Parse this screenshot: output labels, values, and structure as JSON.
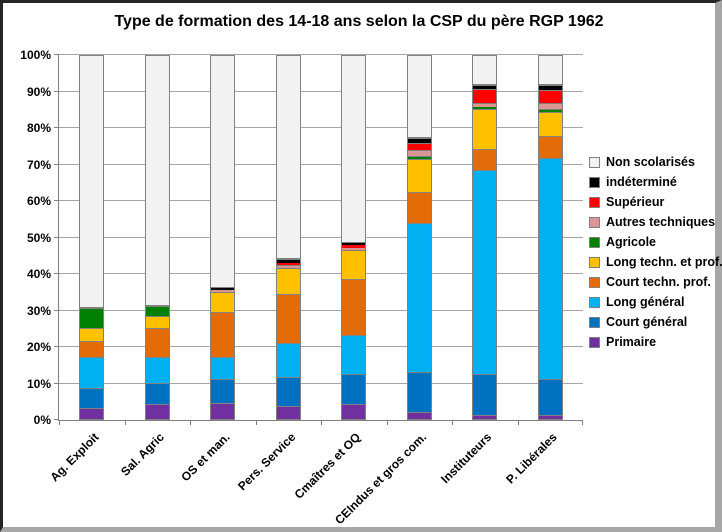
{
  "chart_data": {
    "type": "bar",
    "stacked": true,
    "percent_stacked": true,
    "title": "Type de formation des 14-18 ans selon la CSP du père RGP 1962",
    "categories": [
      "Ag. Exploit",
      "Sal. Agric",
      "OS et man.",
      "Pers. Service",
      "Cmaîtres et OQ",
      "CEIndus et gros com.",
      "Instituteurs",
      "P. Libérales"
    ],
    "series_bottom_to_top": [
      {
        "name": "Primaire",
        "color": "#7030A0",
        "values": [
          3,
          4,
          4.5,
          3.5,
          4,
          2,
          1,
          1
        ]
      },
      {
        "name": "Court général",
        "color": "#0070C0",
        "values": [
          5.5,
          6,
          6.5,
          8,
          8.5,
          11,
          11.5,
          10
        ]
      },
      {
        "name": "Long général",
        "color": "#00B0F0",
        "values": [
          8.5,
          7,
          6,
          9.5,
          10.5,
          41,
          56,
          61
        ]
      },
      {
        "name": "Court techn.  prof.",
        "color": "#E36C09",
        "values": [
          4.5,
          8,
          12.5,
          13.5,
          15.5,
          8.5,
          6,
          6
        ]
      },
      {
        "name": "Long techn. et prof.",
        "color": "#FFC000",
        "values": [
          3.5,
          3.5,
          5.5,
          7,
          8,
          9,
          11,
          6.5
        ]
      },
      {
        "name": "Agricole",
        "color": "#008000",
        "values": [
          5.5,
          2.5,
          0,
          0,
          0,
          1,
          0.5,
          1
        ]
      },
      {
        "name": "Autres techniques",
        "color": "#D99694",
        "values": [
          0,
          0,
          0.5,
          1,
          0.7,
          1.5,
          1,
          1.5
        ]
      },
      {
        "name": "Supérieur",
        "color": "#FF0000",
        "values": [
          0,
          0,
          0,
          0.5,
          0.7,
          2,
          4,
          3.5
        ]
      },
      {
        "name": "indéterminé",
        "color": "#000000",
        "values": [
          0,
          0,
          0.5,
          1,
          0.6,
          1.5,
          1,
          1.5
        ]
      },
      {
        "name": "Non scolarisés",
        "color": "#F2F2F2",
        "values": [
          69.5,
          69,
          64,
          56,
          51.5,
          22.5,
          8,
          8
        ]
      }
    ],
    "legend_top_to_bottom": [
      "Non scolarisés",
      "indéterminé",
      "Supérieur",
      "Autres techniques",
      "Agricole",
      "Long techn. et prof.",
      "Court techn.  prof.",
      "Long général",
      "Court général",
      "Primaire"
    ],
    "ylabel": "",
    "xlabel": "",
    "ylim": [
      0,
      100
    ],
    "yticks": [
      "0%",
      "10%",
      "20%",
      "30%",
      "40%",
      "50%",
      "60%",
      "70%",
      "80%",
      "90%",
      "100%"
    ],
    "grid": true,
    "legend_position": "right",
    "gridline_color": "#A6A6A6",
    "axis_color": "#808080",
    "segment_border_color": "#808080"
  }
}
